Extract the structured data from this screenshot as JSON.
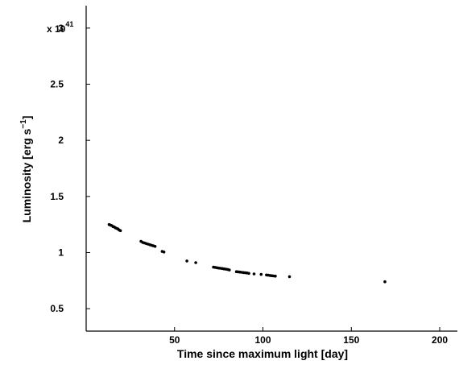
{
  "chart_data": {
    "type": "scatter",
    "title": "",
    "xlabel": "Time since maximum light [day]",
    "ylabel": "Luminosity [erg s^-1]",
    "ylabel_base": "Luminosity [erg s",
    "ylabel_sup": "−1",
    "ylabel_close": "]",
    "y_multiplier": {
      "base": "x 10",
      "exponent": "41"
    },
    "xlim": [
      0,
      210
    ],
    "ylim": [
      0.3,
      3.2
    ],
    "xticks": [
      50,
      100,
      150,
      200
    ],
    "xtick_labels": [
      "50",
      "100",
      "150",
      "200"
    ],
    "yticks": [
      0.5,
      1,
      1.5,
      2,
      2.5,
      3
    ],
    "ytick_labels": [
      "0.5",
      "1",
      "1.5",
      "2",
      "2.5",
      "3"
    ],
    "grid": false,
    "marker_color": "#000000",
    "series": [
      {
        "x": [
          13.0,
          13.8,
          14.5,
          15.2,
          15.9,
          16.6,
          17.3,
          18.0,
          18.7,
          19.4,
          31.0,
          32.0,
          33.0,
          34.0,
          35.0,
          36.0,
          37.0,
          38.0,
          39.0,
          43.0,
          44.0,
          57.0,
          62.0,
          72.0,
          73.0,
          74.0,
          75.0,
          76.0,
          77.0,
          78.0,
          79.0,
          80.0,
          81.0,
          85.0,
          86.0,
          87.0,
          88.0,
          89.0,
          90.0,
          91.0,
          92.0,
          95.0,
          99.0,
          102.0,
          103.0,
          104.0,
          105.0,
          106.0,
          107.0,
          115.0,
          169.0
        ],
        "y": [
          1.25,
          1.245,
          1.24,
          1.232,
          1.228,
          1.22,
          1.215,
          1.21,
          1.2,
          1.195,
          1.1,
          1.09,
          1.085,
          1.08,
          1.075,
          1.07,
          1.065,
          1.06,
          1.055,
          1.01,
          1.005,
          0.925,
          0.91,
          0.87,
          0.868,
          0.865,
          0.862,
          0.86,
          0.858,
          0.855,
          0.852,
          0.85,
          0.845,
          0.83,
          0.828,
          0.826,
          0.824,
          0.822,
          0.82,
          0.818,
          0.815,
          0.81,
          0.805,
          0.8,
          0.798,
          0.796,
          0.794,
          0.792,
          0.79,
          0.785,
          0.74
        ]
      }
    ]
  }
}
